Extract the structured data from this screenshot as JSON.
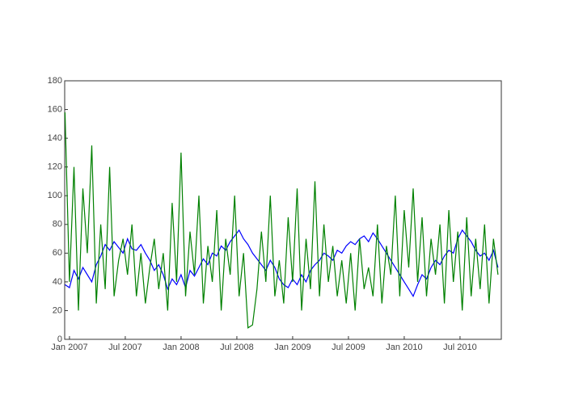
{
  "chart_data": {
    "type": "line",
    "x": [
      2006.96,
      2007.0,
      2007.04,
      2007.08,
      2007.12,
      2007.16,
      2007.2,
      2007.24,
      2007.28,
      2007.32,
      2007.36,
      2007.4,
      2007.44,
      2007.48,
      2007.52,
      2007.56,
      2007.6,
      2007.64,
      2007.68,
      2007.72,
      2007.76,
      2007.8,
      2007.84,
      2007.88,
      2007.92,
      2007.96,
      2008.0,
      2008.04,
      2008.08,
      2008.12,
      2008.16,
      2008.2,
      2008.24,
      2008.28,
      2008.32,
      2008.36,
      2008.4,
      2008.44,
      2008.48,
      2008.52,
      2008.56,
      2008.6,
      2008.64,
      2008.68,
      2008.72,
      2008.76,
      2008.8,
      2008.84,
      2008.88,
      2008.92,
      2008.96,
      2009.0,
      2009.04,
      2009.08,
      2009.12,
      2009.16,
      2009.2,
      2009.24,
      2009.28,
      2009.32,
      2009.36,
      2009.4,
      2009.44,
      2009.48,
      2009.52,
      2009.56,
      2009.6,
      2009.64,
      2009.68,
      2009.72,
      2009.76,
      2009.8,
      2009.84,
      2009.88,
      2009.92,
      2009.96,
      2010.0,
      2010.04,
      2010.08,
      2010.12,
      2010.16,
      2010.2,
      2010.24,
      2010.28,
      2010.32,
      2010.36,
      2010.4,
      2010.44,
      2010.48,
      2010.52,
      2010.56,
      2010.6,
      2010.64,
      2010.68,
      2010.72,
      2010.76,
      2010.8,
      2010.84
    ],
    "series": [
      {
        "color": "#0000ff",
        "values": [
          38,
          36,
          48,
          42,
          50,
          45,
          40,
          52,
          58,
          66,
          62,
          68,
          64,
          60,
          70,
          63,
          62,
          66,
          60,
          55,
          48,
          52,
          45,
          35,
          42,
          38,
          45,
          36,
          48,
          44,
          50,
          56,
          52,
          60,
          58,
          65,
          62,
          68,
          72,
          76,
          70,
          66,
          60,
          56,
          52,
          48,
          55,
          50,
          42,
          38,
          36,
          42,
          38,
          45,
          40,
          48,
          52,
          55,
          60,
          58,
          55,
          62,
          60,
          65,
          68,
          66,
          70,
          72,
          68,
          74,
          70,
          65,
          60,
          55,
          50,
          45,
          40,
          35,
          30,
          38,
          45,
          42,
          50,
          55,
          52,
          58,
          62,
          60,
          70,
          76,
          72,
          68,
          62,
          58,
          60,
          55,
          62,
          50
        ]
      },
      {
        "color": "#008000",
        "values": [
          158,
          40,
          120,
          20,
          105,
          60,
          135,
          25,
          80,
          35,
          120,
          30,
          55,
          70,
          45,
          80,
          30,
          60,
          25,
          50,
          70,
          35,
          60,
          20,
          95,
          40,
          130,
          30,
          75,
          45,
          100,
          25,
          65,
          40,
          90,
          20,
          70,
          45,
          100,
          30,
          60,
          8,
          10,
          35,
          75,
          40,
          100,
          30,
          55,
          25,
          85,
          40,
          105,
          20,
          70,
          35,
          110,
          30,
          80,
          40,
          65,
          30,
          55,
          25,
          60,
          20,
          70,
          35,
          50,
          30,
          80,
          25,
          65,
          45,
          100,
          30,
          90,
          50,
          105,
          40,
          85,
          30,
          70,
          45,
          80,
          25,
          90,
          40,
          75,
          20,
          85,
          30,
          70,
          35,
          80,
          25,
          70,
          45
        ]
      }
    ],
    "xlim": [
      2006.957,
      2010.87
    ],
    "xticks": [
      {
        "value": 2007,
        "label": "Jan 2007"
      },
      {
        "value": 2007.5,
        "label": "Jul 2007"
      },
      {
        "value": 2008,
        "label": "Jan 2008"
      },
      {
        "value": 2008.5,
        "label": "Jul 2008"
      },
      {
        "value": 2009,
        "label": "Jan 2009"
      },
      {
        "value": 2009.5,
        "label": "Jul 2009"
      },
      {
        "value": 2010,
        "label": "Jan 2010"
      },
      {
        "value": 2010.5,
        "label": "Jul 2010"
      }
    ],
    "ylim": [
      0,
      180
    ],
    "yticks": [
      0,
      20,
      40,
      60,
      80,
      100,
      120,
      140,
      160,
      180
    ]
  }
}
